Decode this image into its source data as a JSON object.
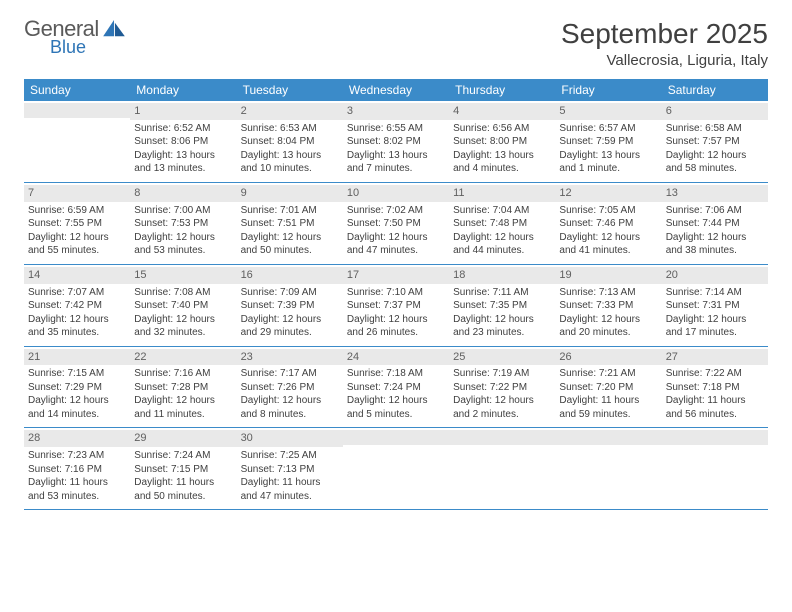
{
  "brand": {
    "general": "General",
    "blue": "Blue"
  },
  "title": "September 2025",
  "location": "Vallecrosia, Liguria, Italy",
  "colors": {
    "headerBar": "#3b8bc9",
    "dayNumBg": "#e9e9e9",
    "text": "#404040",
    "logoGray": "#5a5a5a",
    "logoBlue": "#2e75b6",
    "divider": "#3b8bc9"
  },
  "dayNames": [
    "Sunday",
    "Monday",
    "Tuesday",
    "Wednesday",
    "Thursday",
    "Friday",
    "Saturday"
  ],
  "weeks": [
    [
      {
        "n": "",
        "lines": []
      },
      {
        "n": "1",
        "lines": [
          "Sunrise: 6:52 AM",
          "Sunset: 8:06 PM",
          "Daylight: 13 hours",
          "and 13 minutes."
        ]
      },
      {
        "n": "2",
        "lines": [
          "Sunrise: 6:53 AM",
          "Sunset: 8:04 PM",
          "Daylight: 13 hours",
          "and 10 minutes."
        ]
      },
      {
        "n": "3",
        "lines": [
          "Sunrise: 6:55 AM",
          "Sunset: 8:02 PM",
          "Daylight: 13 hours",
          "and 7 minutes."
        ]
      },
      {
        "n": "4",
        "lines": [
          "Sunrise: 6:56 AM",
          "Sunset: 8:00 PM",
          "Daylight: 13 hours",
          "and 4 minutes."
        ]
      },
      {
        "n": "5",
        "lines": [
          "Sunrise: 6:57 AM",
          "Sunset: 7:59 PM",
          "Daylight: 13 hours",
          "and 1 minute."
        ]
      },
      {
        "n": "6",
        "lines": [
          "Sunrise: 6:58 AM",
          "Sunset: 7:57 PM",
          "Daylight: 12 hours",
          "and 58 minutes."
        ]
      }
    ],
    [
      {
        "n": "7",
        "lines": [
          "Sunrise: 6:59 AM",
          "Sunset: 7:55 PM",
          "Daylight: 12 hours",
          "and 55 minutes."
        ]
      },
      {
        "n": "8",
        "lines": [
          "Sunrise: 7:00 AM",
          "Sunset: 7:53 PM",
          "Daylight: 12 hours",
          "and 53 minutes."
        ]
      },
      {
        "n": "9",
        "lines": [
          "Sunrise: 7:01 AM",
          "Sunset: 7:51 PM",
          "Daylight: 12 hours",
          "and 50 minutes."
        ]
      },
      {
        "n": "10",
        "lines": [
          "Sunrise: 7:02 AM",
          "Sunset: 7:50 PM",
          "Daylight: 12 hours",
          "and 47 minutes."
        ]
      },
      {
        "n": "11",
        "lines": [
          "Sunrise: 7:04 AM",
          "Sunset: 7:48 PM",
          "Daylight: 12 hours",
          "and 44 minutes."
        ]
      },
      {
        "n": "12",
        "lines": [
          "Sunrise: 7:05 AM",
          "Sunset: 7:46 PM",
          "Daylight: 12 hours",
          "and 41 minutes."
        ]
      },
      {
        "n": "13",
        "lines": [
          "Sunrise: 7:06 AM",
          "Sunset: 7:44 PM",
          "Daylight: 12 hours",
          "and 38 minutes."
        ]
      }
    ],
    [
      {
        "n": "14",
        "lines": [
          "Sunrise: 7:07 AM",
          "Sunset: 7:42 PM",
          "Daylight: 12 hours",
          "and 35 minutes."
        ]
      },
      {
        "n": "15",
        "lines": [
          "Sunrise: 7:08 AM",
          "Sunset: 7:40 PM",
          "Daylight: 12 hours",
          "and 32 minutes."
        ]
      },
      {
        "n": "16",
        "lines": [
          "Sunrise: 7:09 AM",
          "Sunset: 7:39 PM",
          "Daylight: 12 hours",
          "and 29 minutes."
        ]
      },
      {
        "n": "17",
        "lines": [
          "Sunrise: 7:10 AM",
          "Sunset: 7:37 PM",
          "Daylight: 12 hours",
          "and 26 minutes."
        ]
      },
      {
        "n": "18",
        "lines": [
          "Sunrise: 7:11 AM",
          "Sunset: 7:35 PM",
          "Daylight: 12 hours",
          "and 23 minutes."
        ]
      },
      {
        "n": "19",
        "lines": [
          "Sunrise: 7:13 AM",
          "Sunset: 7:33 PM",
          "Daylight: 12 hours",
          "and 20 minutes."
        ]
      },
      {
        "n": "20",
        "lines": [
          "Sunrise: 7:14 AM",
          "Sunset: 7:31 PM",
          "Daylight: 12 hours",
          "and 17 minutes."
        ]
      }
    ],
    [
      {
        "n": "21",
        "lines": [
          "Sunrise: 7:15 AM",
          "Sunset: 7:29 PM",
          "Daylight: 12 hours",
          "and 14 minutes."
        ]
      },
      {
        "n": "22",
        "lines": [
          "Sunrise: 7:16 AM",
          "Sunset: 7:28 PM",
          "Daylight: 12 hours",
          "and 11 minutes."
        ]
      },
      {
        "n": "23",
        "lines": [
          "Sunrise: 7:17 AM",
          "Sunset: 7:26 PM",
          "Daylight: 12 hours",
          "and 8 minutes."
        ]
      },
      {
        "n": "24",
        "lines": [
          "Sunrise: 7:18 AM",
          "Sunset: 7:24 PM",
          "Daylight: 12 hours",
          "and 5 minutes."
        ]
      },
      {
        "n": "25",
        "lines": [
          "Sunrise: 7:19 AM",
          "Sunset: 7:22 PM",
          "Daylight: 12 hours",
          "and 2 minutes."
        ]
      },
      {
        "n": "26",
        "lines": [
          "Sunrise: 7:21 AM",
          "Sunset: 7:20 PM",
          "Daylight: 11 hours",
          "and 59 minutes."
        ]
      },
      {
        "n": "27",
        "lines": [
          "Sunrise: 7:22 AM",
          "Sunset: 7:18 PM",
          "Daylight: 11 hours",
          "and 56 minutes."
        ]
      }
    ],
    [
      {
        "n": "28",
        "lines": [
          "Sunrise: 7:23 AM",
          "Sunset: 7:16 PM",
          "Daylight: 11 hours",
          "and 53 minutes."
        ]
      },
      {
        "n": "29",
        "lines": [
          "Sunrise: 7:24 AM",
          "Sunset: 7:15 PM",
          "Daylight: 11 hours",
          "and 50 minutes."
        ]
      },
      {
        "n": "30",
        "lines": [
          "Sunrise: 7:25 AM",
          "Sunset: 7:13 PM",
          "Daylight: 11 hours",
          "and 47 minutes."
        ]
      },
      {
        "n": "",
        "lines": []
      },
      {
        "n": "",
        "lines": []
      },
      {
        "n": "",
        "lines": []
      },
      {
        "n": "",
        "lines": []
      }
    ]
  ]
}
